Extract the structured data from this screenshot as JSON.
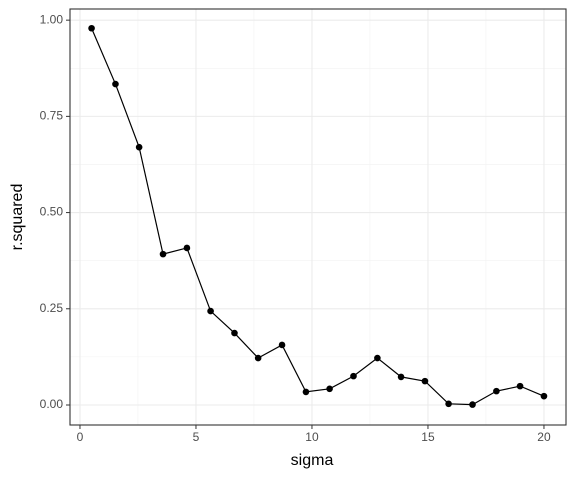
{
  "chart_data": {
    "type": "line",
    "x_label": "sigma",
    "y_label": "r.squared",
    "series": [
      {
        "color": "#000000",
        "x": [
          0.5,
          1.53,
          2.55,
          3.58,
          4.61,
          5.63,
          6.66,
          7.68,
          8.71,
          9.74,
          10.76,
          11.79,
          12.82,
          13.84,
          14.87,
          15.89,
          16.92,
          17.95,
          18.97,
          20
        ],
        "values": [
          0.979,
          0.834,
          0.67,
          0.392,
          0.408,
          0.244,
          0.187,
          0.122,
          0.156,
          0.034,
          0.042,
          0.075,
          0.122,
          0.073,
          0.062,
          0.003,
          0.001,
          0.036,
          0.049,
          0.023
        ]
      }
    ],
    "xlim": [
      -0.43,
      20.95
    ],
    "xticks": [
      0,
      5,
      10,
      15,
      20
    ],
    "ylim": [
      -0.052,
      1.029
    ],
    "yticks": [
      {
        "value": 0,
        "label": "0.00"
      },
      {
        "value": 0.25,
        "label": "0.25"
      },
      {
        "value": 0.5,
        "label": "0.50"
      },
      {
        "value": 0.75,
        "label": "0.75"
      },
      {
        "value": 1,
        "label": "1.00"
      }
    ],
    "grid": true
  }
}
